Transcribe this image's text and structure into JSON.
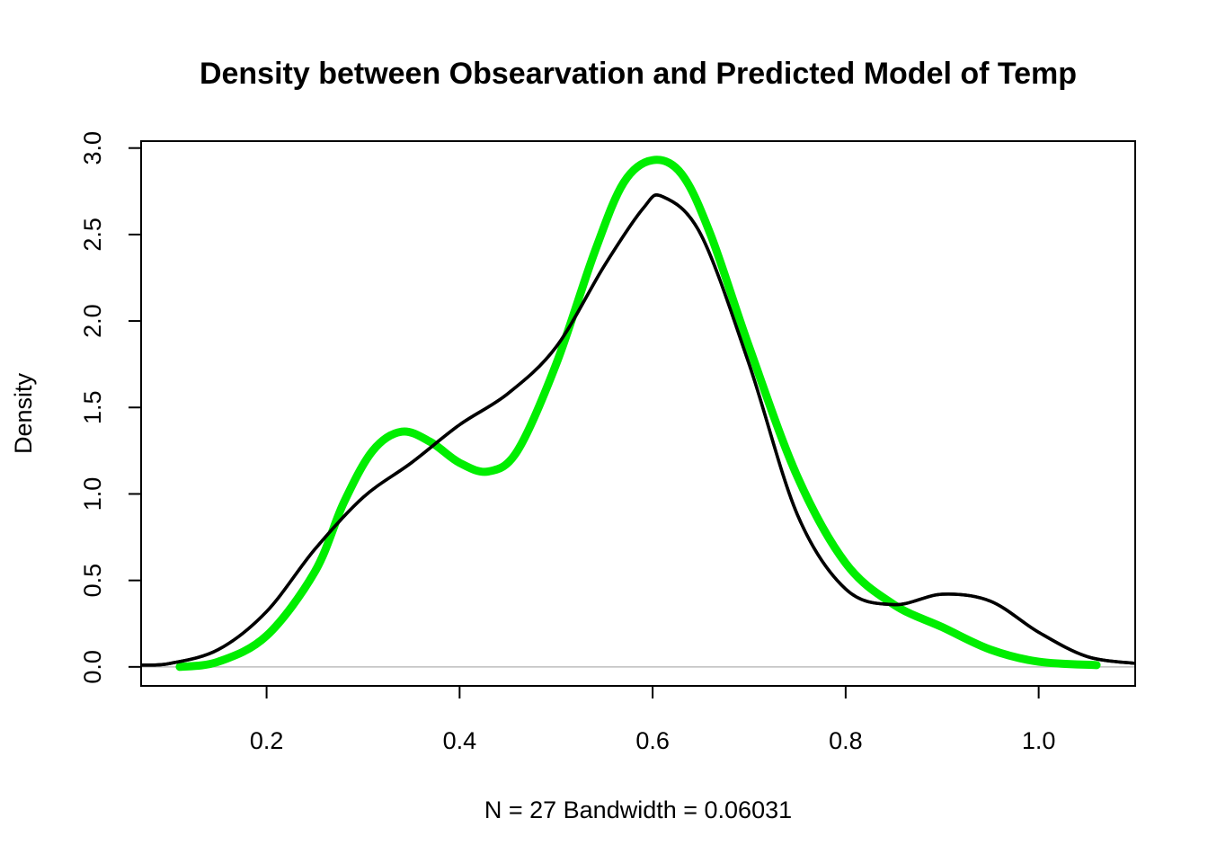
{
  "chart_data": {
    "type": "line",
    "title": "Density between Obsearvation and Predicted Model of Temp",
    "xlabel": "N = 27   Bandwidth = 0.06031",
    "ylabel": "Density",
    "xlim": [
      0.07,
      1.1
    ],
    "ylim": [
      -0.11,
      3.04
    ],
    "x_ticks": [
      "0.2",
      "0.4",
      "0.6",
      "0.8",
      "1.0"
    ],
    "x_tick_values": [
      0.2,
      0.4,
      0.6,
      0.8,
      1.0
    ],
    "y_ticks": [
      "0.0",
      "0.5",
      "1.0",
      "1.5",
      "2.0",
      "2.5",
      "3.0"
    ],
    "y_tick_values": [
      0,
      0.5,
      1.0,
      1.5,
      2.0,
      2.5,
      3.0
    ],
    "grid": false,
    "zero_line": {
      "y": 0,
      "color": "#bebebe"
    },
    "series": [
      {
        "color": "#000000",
        "points": [
          [
            0.07,
            0.01
          ],
          [
            0.1,
            0.02
          ],
          [
            0.15,
            0.1
          ],
          [
            0.2,
            0.32
          ],
          [
            0.25,
            0.68
          ],
          [
            0.3,
            0.98
          ],
          [
            0.35,
            1.18
          ],
          [
            0.4,
            1.4
          ],
          [
            0.45,
            1.58
          ],
          [
            0.5,
            1.85
          ],
          [
            0.55,
            2.32
          ],
          [
            0.59,
            2.65
          ],
          [
            0.61,
            2.72
          ],
          [
            0.65,
            2.5
          ],
          [
            0.7,
            1.75
          ],
          [
            0.75,
            0.88
          ],
          [
            0.8,
            0.45
          ],
          [
            0.85,
            0.36
          ],
          [
            0.9,
            0.42
          ],
          [
            0.95,
            0.38
          ],
          [
            1.0,
            0.2
          ],
          [
            1.05,
            0.06
          ],
          [
            1.1,
            0.02
          ]
        ]
      },
      {
        "color": "#00ee00",
        "points": [
          [
            0.11,
            0.0
          ],
          [
            0.15,
            0.03
          ],
          [
            0.2,
            0.18
          ],
          [
            0.25,
            0.55
          ],
          [
            0.28,
            0.95
          ],
          [
            0.31,
            1.25
          ],
          [
            0.34,
            1.36
          ],
          [
            0.37,
            1.3
          ],
          [
            0.4,
            1.18
          ],
          [
            0.43,
            1.13
          ],
          [
            0.46,
            1.25
          ],
          [
            0.5,
            1.75
          ],
          [
            0.54,
            2.4
          ],
          [
            0.57,
            2.8
          ],
          [
            0.6,
            2.93
          ],
          [
            0.63,
            2.85
          ],
          [
            0.66,
            2.5
          ],
          [
            0.7,
            1.85
          ],
          [
            0.75,
            1.1
          ],
          [
            0.8,
            0.6
          ],
          [
            0.85,
            0.36
          ],
          [
            0.9,
            0.23
          ],
          [
            0.95,
            0.1
          ],
          [
            1.0,
            0.03
          ],
          [
            1.06,
            0.01
          ]
        ]
      }
    ]
  }
}
